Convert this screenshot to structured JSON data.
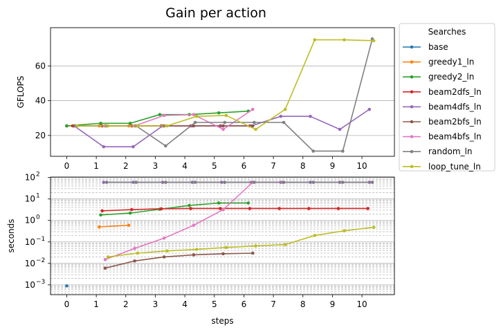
{
  "figure": {
    "title": "Gain per action"
  },
  "chart_data": [
    {
      "type": "line",
      "ylabel": "GFLOPS",
      "xlabel": "",
      "xlim": [
        -0.55,
        11.1
      ],
      "ylim": [
        8,
        82
      ],
      "xticks": [
        0,
        1,
        2,
        3,
        4,
        5,
        6,
        7,
        8,
        9,
        10
      ],
      "yticks": [
        20,
        40,
        60
      ],
      "grid": "horizontal",
      "series": [
        {
          "name": "base",
          "color": "#1f77b4",
          "x": [
            0
          ],
          "y": [
            25.5
          ]
        },
        {
          "name": "greedy1_ln",
          "color": "#ff7f0e",
          "x": [
            0,
            1.1,
            2.1
          ],
          "y": [
            25.5,
            25.5,
            25.5
          ]
        },
        {
          "name": "greedy2_ln",
          "color": "#2ca02c",
          "x": [
            0,
            1.15,
            2.15,
            3.15,
            4.15,
            5.15,
            6.15
          ],
          "y": [
            25.5,
            27,
            27,
            32,
            32,
            33,
            34
          ]
        },
        {
          "name": "beam2dfs_ln",
          "color": "#d62728",
          "x": [
            0.2,
            1.2,
            2.2,
            3.2,
            4.2,
            5.2,
            6.2
          ],
          "y": [
            25.5,
            25.5,
            25.5,
            25.5,
            25.5,
            25.5,
            25.5
          ]
        },
        {
          "name": "beam4dfs_ln",
          "color": "#9467bd",
          "x": [
            0.25,
            1.25,
            2.25,
            3.25,
            4.25,
            5.25,
            6.25,
            7.25,
            8.25,
            9.25,
            10.25
          ],
          "y": [
            25.5,
            13.5,
            13.5,
            25.5,
            25.5,
            25.5,
            25.5,
            31,
            31,
            23.5,
            35
          ]
        },
        {
          "name": "beam2bfs_ln",
          "color": "#8c564b",
          "x": [
            0.25,
            1.3,
            2.3,
            3.3,
            4.3,
            5.3,
            6.3
          ],
          "y": [
            25.5,
            25.5,
            25.5,
            25.5,
            25.5,
            25.5,
            25.5
          ]
        },
        {
          "name": "beam4bfs_ln",
          "color": "#e377c2",
          "x": [
            0.3,
            1.3,
            2.3,
            3.3,
            4.3,
            5.3,
            6.3
          ],
          "y": [
            25.5,
            25.5,
            25.5,
            31.5,
            32,
            23.5,
            35
          ]
        },
        {
          "name": "random_ln",
          "color": "#7f7f7f",
          "x": [
            0.3,
            1.35,
            2.35,
            3.35,
            4.35,
            5.35,
            6.35,
            7.35,
            8.35,
            9.35,
            10.35
          ],
          "y": [
            25.5,
            25.5,
            25.5,
            14,
            27.5,
            27.5,
            27.5,
            27.5,
            11,
            11,
            75.5
          ]
        },
        {
          "name": "loop_tune_ln",
          "color": "#bcbd22",
          "x": [
            0.35,
            1.4,
            2.4,
            3.4,
            4.4,
            5.4,
            6.4,
            7.4,
            8.4,
            9.4,
            10.4
          ],
          "y": [
            25.5,
            25.5,
            25.5,
            25.5,
            31,
            31.5,
            23.5,
            35,
            75,
            75,
            74.5
          ]
        }
      ]
    },
    {
      "type": "line",
      "ylabel": "seconds",
      "xlabel": "steps",
      "yscale": "log",
      "xlim": [
        -0.55,
        11.1
      ],
      "ylim": [
        0.00035,
        105
      ],
      "xticks": [
        0,
        1,
        2,
        3,
        4,
        5,
        6,
        7,
        8,
        9,
        10
      ],
      "ytick_exponents": [
        -3,
        -2,
        -1,
        0,
        1,
        2
      ],
      "ytick_base": "10",
      "grid": "horizontal-major-and-minor",
      "series": [
        {
          "name": "base",
          "color": "#1f77b4",
          "x": [
            0
          ],
          "y": [
            0.0009
          ]
        },
        {
          "name": "greedy1_ln",
          "color": "#ff7f0e",
          "x": [
            1.1,
            2.1
          ],
          "y": [
            0.5,
            0.6
          ]
        },
        {
          "name": "greedy2_ln",
          "color": "#2ca02c",
          "x": [
            1.15,
            2.15,
            3.15,
            4.15,
            5.15,
            6.15
          ],
          "y": [
            1.8,
            2.2,
            3.3,
            5,
            6.5,
            6.5
          ]
        },
        {
          "name": "beam2dfs_ln",
          "color": "#d62728",
          "x": [
            1.2,
            2.2,
            3.2,
            4.2,
            5.2,
            6.2,
            7.2,
            8.2,
            9.2,
            10.2
          ],
          "y": [
            2.8,
            3.2,
            3.5,
            3.6,
            3.6,
            3.6,
            3.6,
            3.6,
            3.6,
            3.6
          ]
        },
        {
          "name": "beam4dfs_ln",
          "color": "#9467bd",
          "x": [
            1.25,
            2.25,
            3.25,
            4.25,
            5.25,
            6.25,
            7.25,
            8.25,
            9.25,
            10.25
          ],
          "y": [
            60,
            60,
            60,
            60,
            60,
            60,
            60,
            60,
            60,
            60
          ]
        },
        {
          "name": "beam2bfs_ln",
          "color": "#8c564b",
          "x": [
            1.3,
            2.3,
            3.3,
            4.3,
            5.3,
            6.3
          ],
          "y": [
            0.006,
            0.013,
            0.02,
            0.025,
            0.028,
            0.03
          ]
        },
        {
          "name": "beam4bfs_ln",
          "color": "#e377c2",
          "x": [
            1.3,
            2.3,
            3.3,
            4.3,
            5.3,
            6.3,
            7.3
          ],
          "y": [
            0.015,
            0.05,
            0.15,
            0.6,
            3.2,
            60,
            60
          ]
        },
        {
          "name": "random_ln",
          "color": "#7f7f7f",
          "x": [
            1.35,
            2.35,
            3.35,
            4.35,
            5.35,
            6.35,
            7.35,
            8.35,
            9.35,
            10.35
          ],
          "y": [
            60,
            60,
            60,
            60,
            60,
            60,
            60,
            60,
            60,
            60
          ]
        },
        {
          "name": "loop_tune_ln",
          "color": "#bcbd22",
          "x": [
            1.4,
            2.4,
            3.4,
            4.4,
            5.4,
            6.4,
            7.4,
            8.4,
            9.4,
            10.4
          ],
          "y": [
            0.02,
            0.03,
            0.038,
            0.045,
            0.055,
            0.065,
            0.075,
            0.2,
            0.33,
            0.48
          ]
        }
      ]
    }
  ],
  "legend": {
    "title": "Searches",
    "placement": "outside-right",
    "entries": [
      {
        "label": "base",
        "color": "#1f77b4"
      },
      {
        "label": "greedy1_ln",
        "color": "#ff7f0e"
      },
      {
        "label": "greedy2_ln",
        "color": "#2ca02c"
      },
      {
        "label": "beam2dfs_ln",
        "color": "#d62728"
      },
      {
        "label": "beam4dfs_ln",
        "color": "#9467bd"
      },
      {
        "label": "beam2bfs_ln",
        "color": "#8c564b"
      },
      {
        "label": "beam4bfs_ln",
        "color": "#e377c2"
      },
      {
        "label": "random_ln",
        "color": "#7f7f7f"
      },
      {
        "label": "loop_tune_ln",
        "color": "#bcbd22"
      }
    ]
  }
}
